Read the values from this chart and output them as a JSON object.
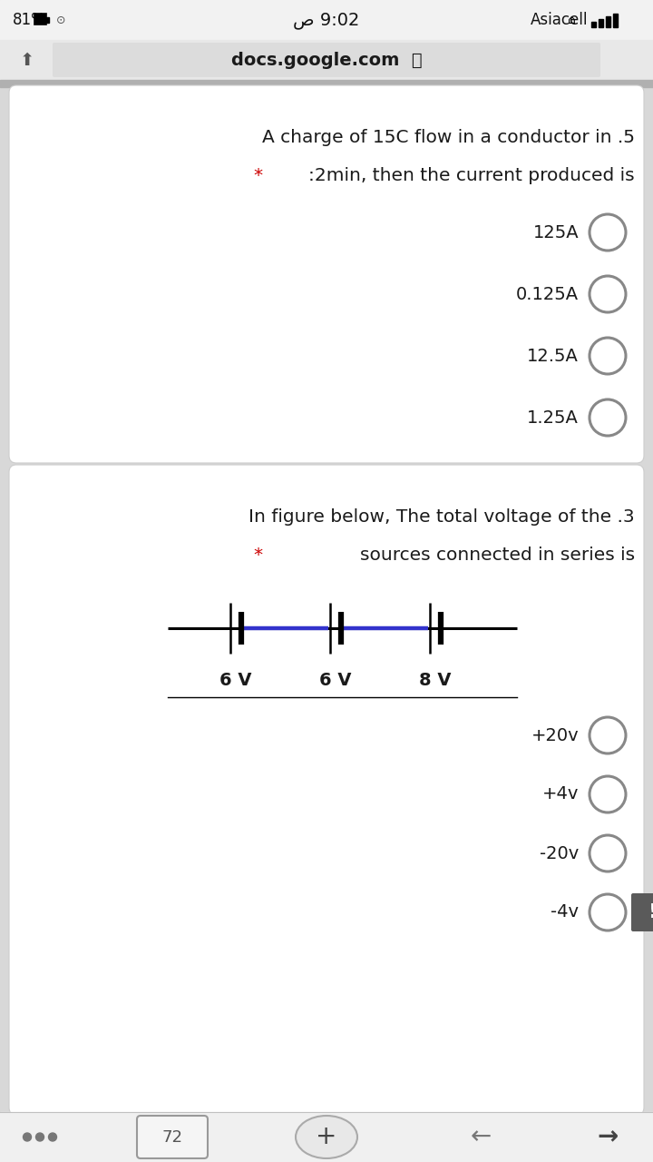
{
  "bg_color": "#d8d8d8",
  "card_color": "#ffffff",
  "status_bg": "#f2f2f2",
  "url_bg": "#e8e8e8",
  "q1_line1": "A charge of 15C flow in a conductor in .5",
  "q1_line2": ":2min, then the current produced is",
  "q1_star": "* ",
  "q1_answers": [
    "125A",
    "0.125A",
    "12.5A",
    "1.25A"
  ],
  "q2_line1": "In figure below, The total voltage of the .3",
  "q2_line2": "sources connected in series is",
  "q2_star": "* ",
  "q2_battery_labels": [
    "6 V",
    "6 V",
    "8 V"
  ],
  "q2_answers": [
    "+20v",
    "+4v",
    "-20v",
    "-4v"
  ],
  "text_color": "#1a1a1a",
  "star_color": "#cc0000",
  "circle_edge_color": "#888888",
  "nav_bg": "#f0f0f0",
  "status_text_color": "#111111",
  "font_size_status": 12,
  "font_size_url": 14,
  "font_size_question": 14.5,
  "font_size_answer": 14,
  "font_size_battery_label": 14
}
